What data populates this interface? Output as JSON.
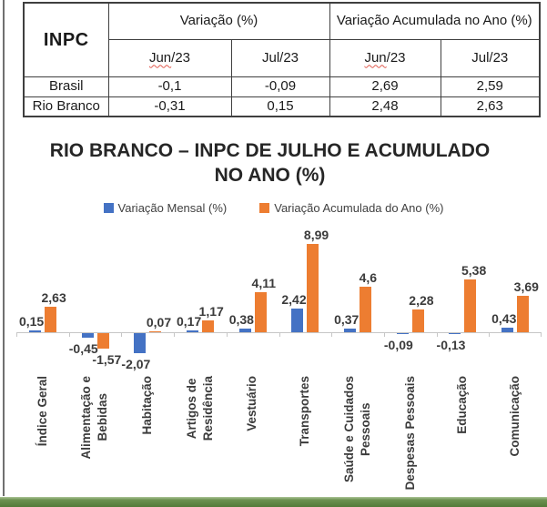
{
  "table": {
    "corner_label": "INPC",
    "col_groups": [
      {
        "label": "Variação (%)"
      },
      {
        "label": "Variação Acumulada no Ano (%)"
      }
    ],
    "sub_headers": [
      {
        "wavy": "Jun",
        "rest": "/23"
      },
      {
        "wavy": "",
        "rest": "Jul/23"
      },
      {
        "wavy": "Jun",
        "rest": "/23"
      },
      {
        "wavy": "",
        "rest": "Jul/23"
      }
    ],
    "rows": [
      {
        "label": "Brasil",
        "values": [
          "-0,1",
          "-0,09",
          "2,69",
          "2,59"
        ]
      },
      {
        "label": "Rio Branco",
        "values": [
          "-0,31",
          "0,15",
          "2,48",
          "2,63"
        ]
      }
    ]
  },
  "chart": {
    "title_lines": [
      "RIO BRANCO – INPC DE JULHO E ACUMULADO",
      "NO ANO (%)"
    ]
  },
  "chart_data": {
    "type": "bar",
    "title": "RIO BRANCO – INPC DE JULHO E ACUMULADO NO ANO (%)",
    "categories": [
      "Índice Geral",
      "Alimentação e Bebidas",
      "Habitação",
      "Artigos de Residência",
      "Vestuário",
      "Transportes",
      "Saúde e Cuidados Pessoais",
      "Despesas Pessoais",
      "Educação",
      "Comunicação"
    ],
    "categories_wrapped": [
      "Índice Geral",
      "Alimentação e\nBebidas",
      "Habitação",
      "Artigos de\nResidência",
      "Vestuário",
      "Transportes",
      "Saúde e Cuidados\nPessoais",
      "Despesas Pessoais",
      "Educação",
      "Comunicação"
    ],
    "series": [
      {
        "name": "Variação Mensal (%)",
        "color": "#4472C4",
        "values": [
          0.15,
          -0.45,
          -2.07,
          0.17,
          0.38,
          2.42,
          0.37,
          -0.09,
          -0.13,
          0.43
        ],
        "labels": [
          "0,15",
          "-0,45",
          "-2,07",
          "0,17",
          "0,38",
          "2,42",
          "0,37",
          "-0,09",
          "-0,13",
          "0,43"
        ]
      },
      {
        "name": "Variação Acumulada do Ano (%)",
        "color": "#ED7D31",
        "values": [
          2.63,
          -1.57,
          0.07,
          1.17,
          4.11,
          8.99,
          4.6,
          2.28,
          5.38,
          3.69
        ],
        "labels": [
          "2,63",
          "-1,57",
          "0,07",
          "1,17",
          "4,11",
          "8,99",
          "4,6",
          "2,28",
          "5,38",
          "3,69"
        ]
      }
    ],
    "ylim": [
      -3,
      10
    ],
    "grid": false,
    "legend_position": "top",
    "decorations": {
      "accent_green": "#527a38",
      "axis_color": "#c6c6c6"
    }
  }
}
